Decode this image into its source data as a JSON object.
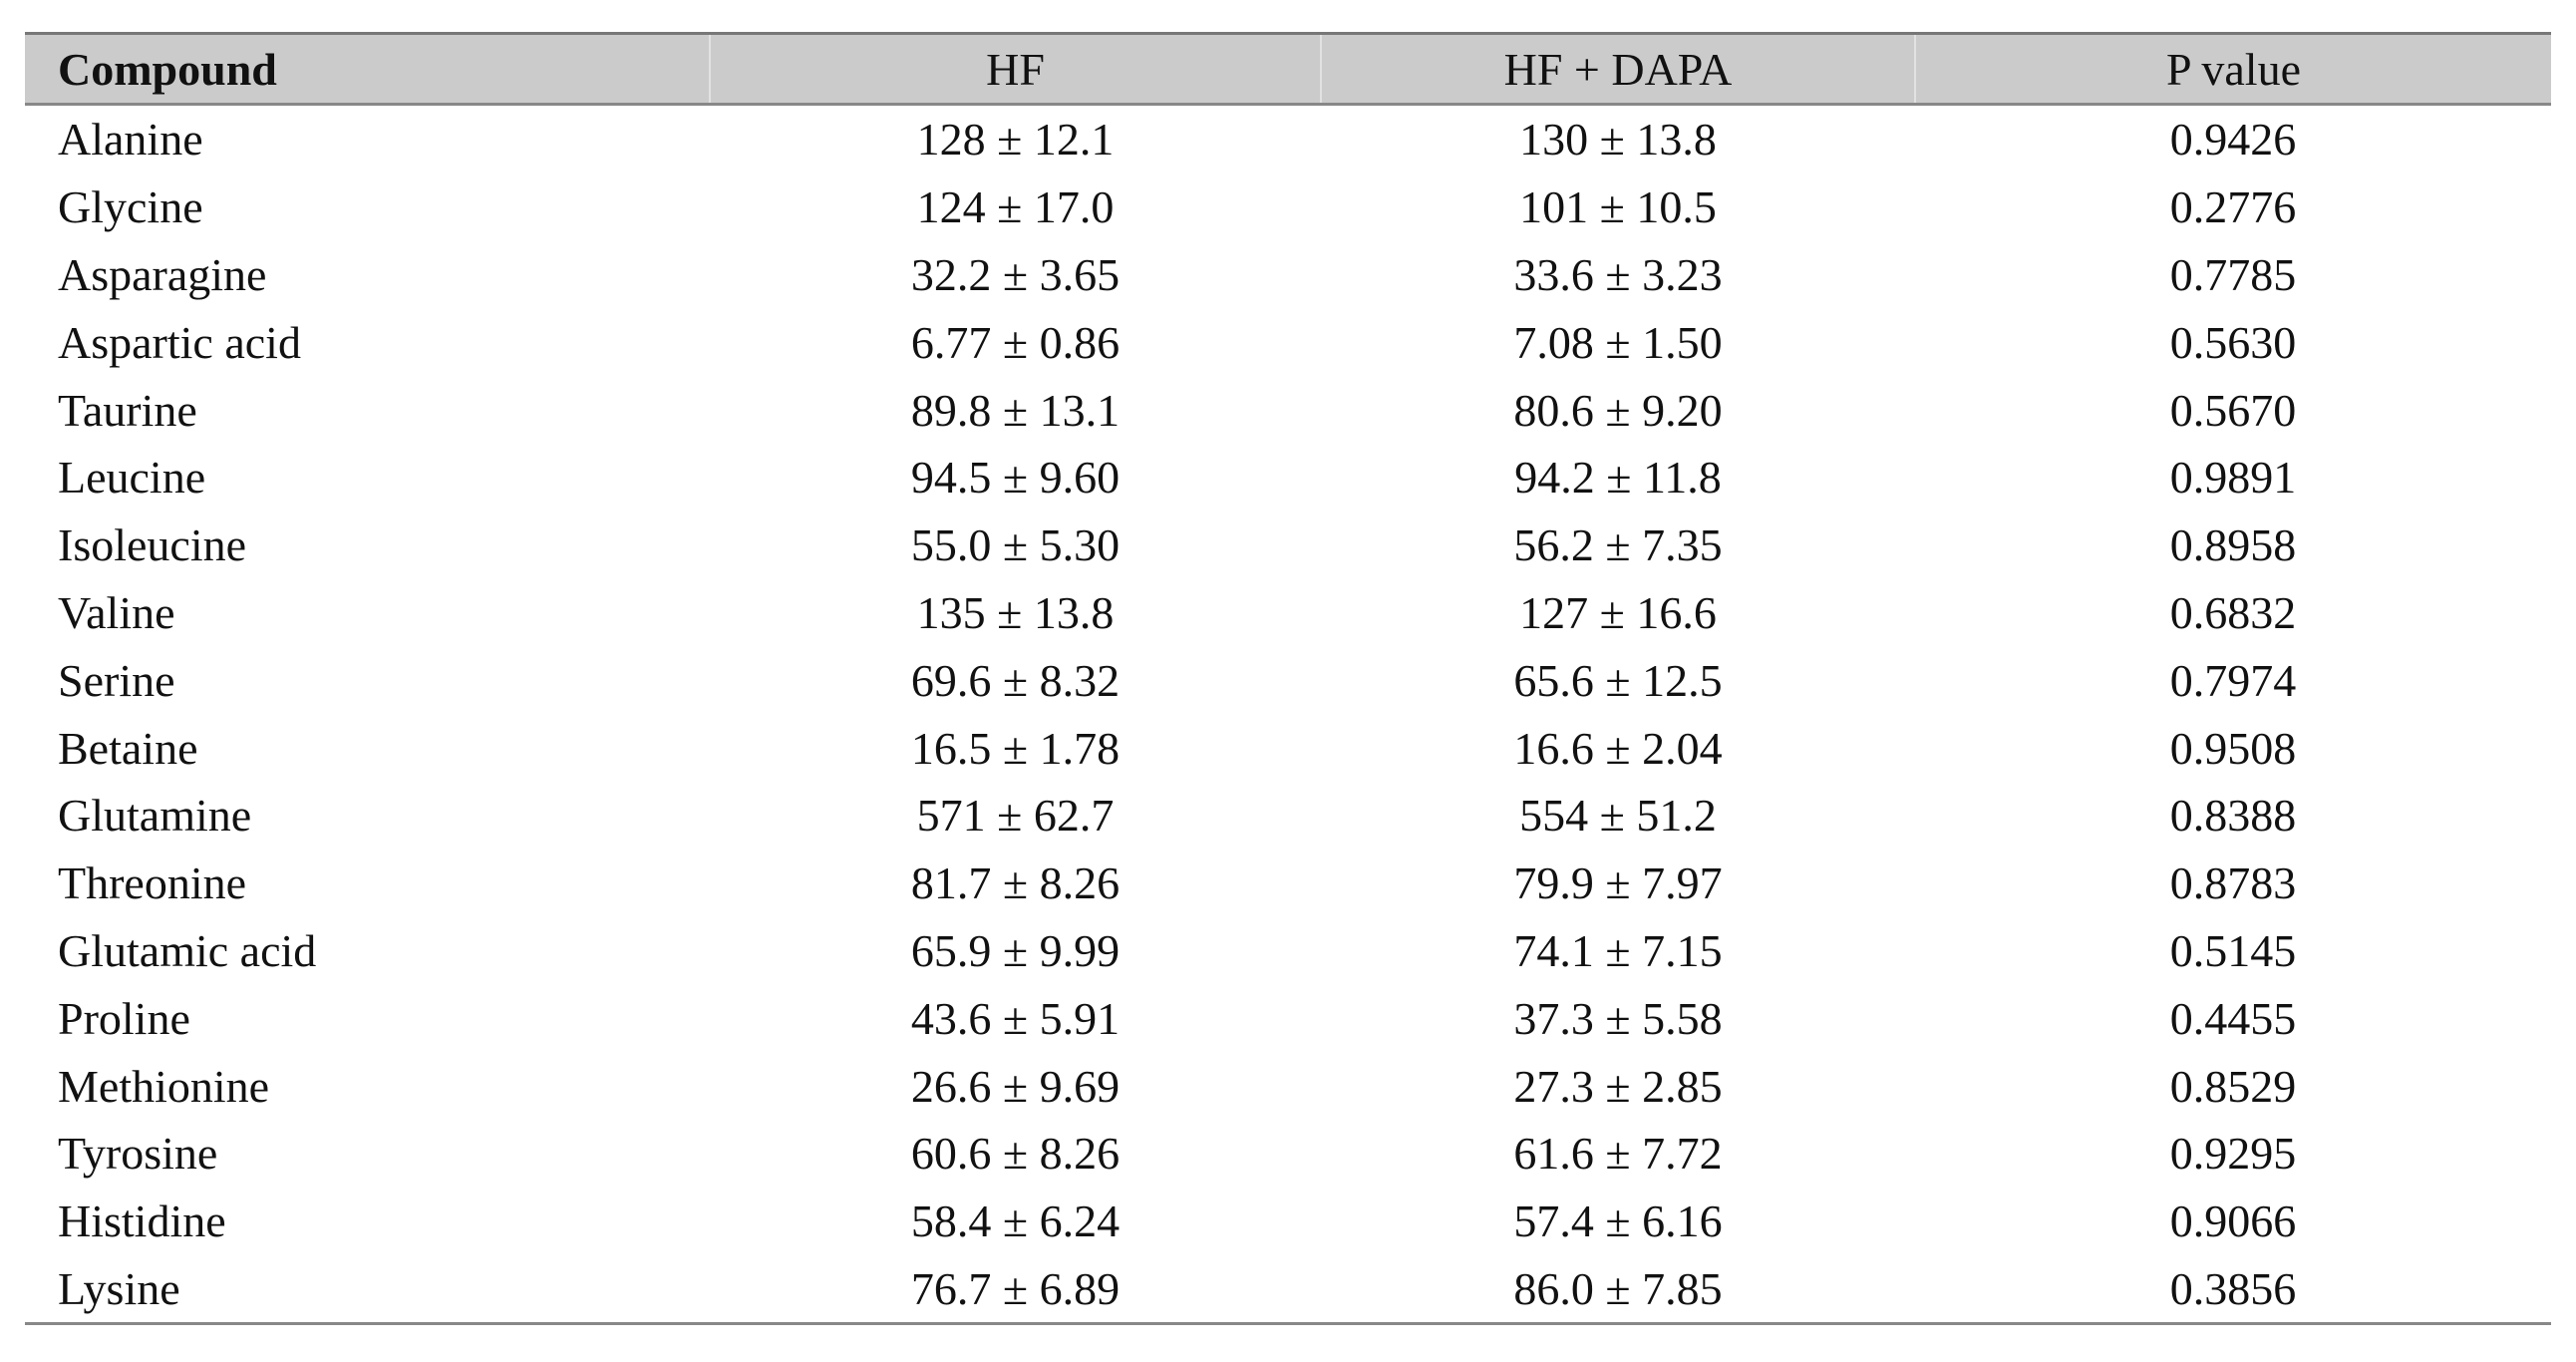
{
  "table": {
    "header": [
      "Compound",
      "HF",
      "HF + DAPA",
      "P value"
    ],
    "rows": [
      [
        "Alanine",
        "128 ± 12.1",
        "130 ± 13.8",
        "0.9426"
      ],
      [
        "Glycine",
        "124 ± 17.0",
        "101 ± 10.5",
        "0.2776"
      ],
      [
        "Asparagine",
        "32.2 ± 3.65",
        "33.6 ± 3.23",
        "0.7785"
      ],
      [
        "Aspartic acid",
        "6.77 ± 0.86",
        "7.08 ± 1.50",
        "0.5630"
      ],
      [
        "Taurine",
        "89.8 ± 13.1",
        "80.6 ± 9.20",
        "0.5670"
      ],
      [
        "Leucine",
        "94.5 ± 9.60",
        "94.2 ± 11.8",
        "0.9891"
      ],
      [
        "Isoleucine",
        "55.0 ± 5.30",
        "56.2 ± 7.35",
        "0.8958"
      ],
      [
        "Valine",
        "135 ± 13.8",
        "127 ± 16.6",
        "0.6832"
      ],
      [
        "Serine",
        "69.6 ± 8.32",
        "65.6 ± 12.5",
        "0.7974"
      ],
      [
        "Betaine",
        "16.5 ± 1.78",
        "16.6 ± 2.04",
        "0.9508"
      ],
      [
        "Glutamine",
        "571 ± 62.7",
        "554 ± 51.2",
        "0.8388"
      ],
      [
        "Threonine",
        "81.7 ± 8.26",
        "79.9 ± 7.97",
        "0.8783"
      ],
      [
        "Glutamic acid",
        "65.9 ± 9.99",
        "74.1 ± 7.15",
        "0.5145"
      ],
      [
        "Proline",
        "43.6 ± 5.91",
        "37.3 ± 5.58",
        "0.4455"
      ],
      [
        "Methionine",
        "26.6 ± 9.69",
        "27.3 ± 2.85",
        "0.8529"
      ],
      [
        "Tyrosine",
        "60.6 ± 8.26",
        "61.6 ± 7.72",
        "0.9295"
      ],
      [
        "Histidine",
        "58.4 ± 6.24",
        "57.4 ± 6.16",
        "0.9066"
      ],
      [
        "Lysine",
        "76.7 ± 6.89",
        "86.0 ± 7.85",
        "0.3856"
      ]
    ]
  }
}
